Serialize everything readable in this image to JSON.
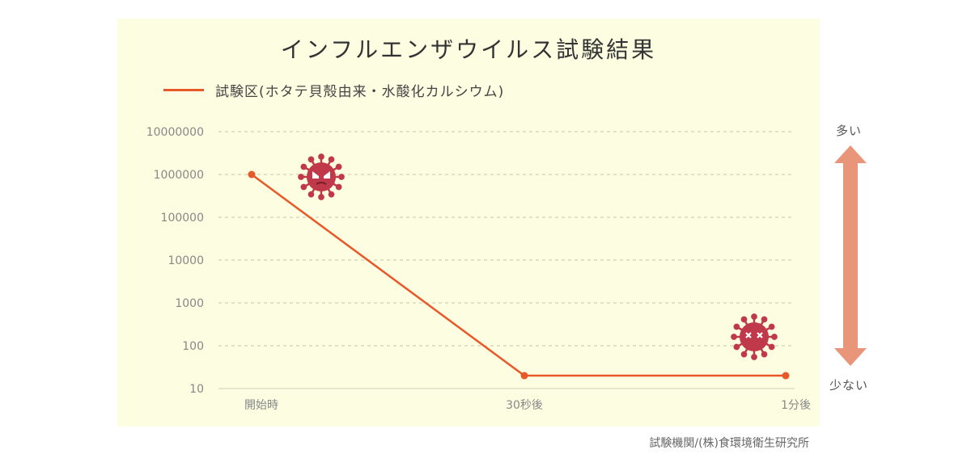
{
  "title": "インフルエンザウイルス試験結果",
  "legend_label": "試験区(ホタテ貝殻由来・水酸化カルシウム)",
  "arrow_top_label": "多い",
  "arrow_bottom_label": "少ない",
  "credit": "試験機関/(株)食環境衛生研究所",
  "colors": {
    "series": "#e8592a",
    "panel": "#fcfde1",
    "arrow": "#e8957a",
    "virus": "#c0394b"
  },
  "icons": [
    "virus-active-icon",
    "virus-dead-icon"
  ],
  "chart_data": {
    "type": "line",
    "title": "インフルエンザウイルス試験結果",
    "x": [
      "開始時",
      "30秒後",
      "1分後"
    ],
    "series": [
      {
        "name": "試験区(ホタテ貝殻由来・水酸化カルシウム)",
        "values": [
          1000000,
          20,
          20
        ]
      }
    ],
    "y_scale": "log",
    "ylim": [
      10,
      10000000
    ],
    "y_ticks": [
      "10",
      "100",
      "1000",
      "10000",
      "100000",
      "1000000",
      "10000000"
    ],
    "grid": true,
    "legend_position": "top-left"
  }
}
